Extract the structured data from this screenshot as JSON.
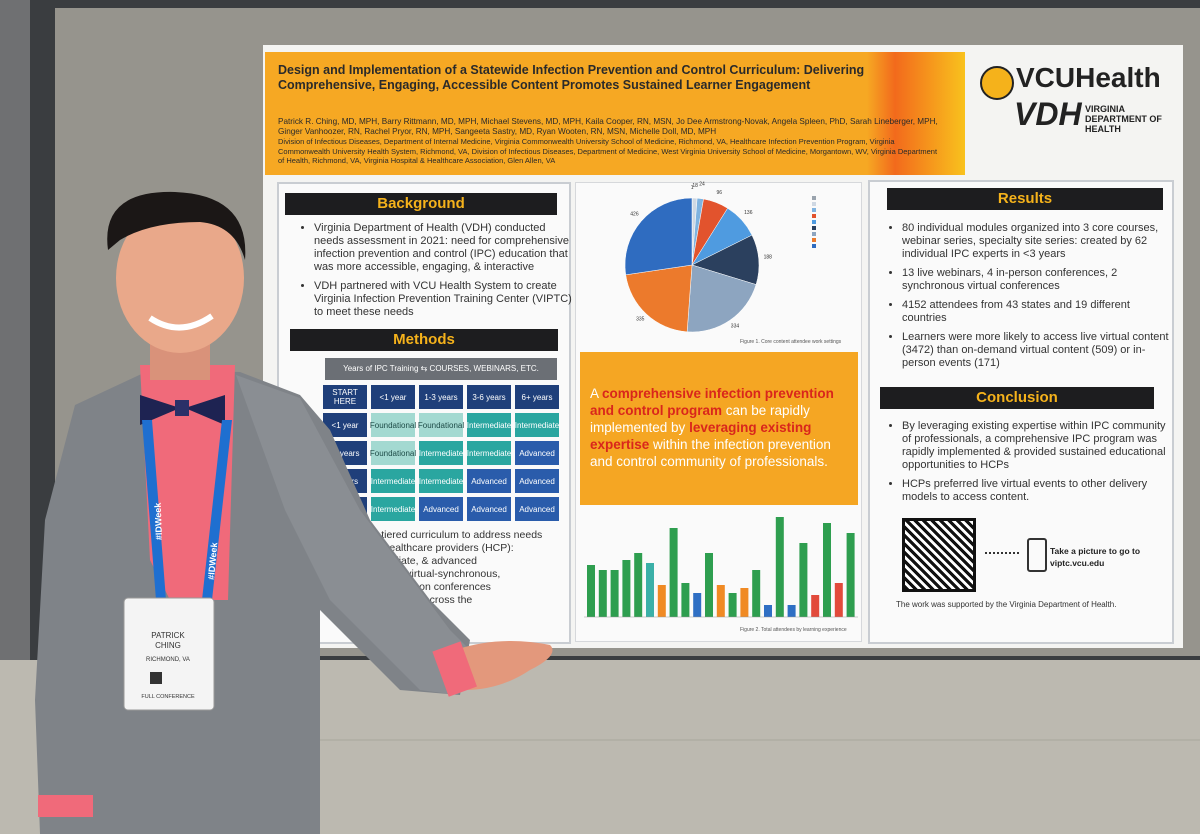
{
  "poster": {
    "title": "Design and Implementation of a Statewide Infection Prevention and Control Curriculum: Delivering Comprehensive, Engaging, Accessible Content Promotes Sustained Learner Engagement",
    "authors": "Patrick R. Ching, MD, MPH, Barry Rittmann, MD, MPH, Michael Stevens, MD, MPH, Kaila Cooper, RN, MSN, Jo Dee Armstrong-Novak, Angela Spleen, PhD, Sarah Lineberger, MPH, Ginger Vanhoozer, RN, Rachel Pryor, RN, MPH, Sangeeta Sastry, MD, Ryan Wooten, RN, MSN, Michelle Doll, MD, MPH",
    "affiliations": "Division of Infectious Diseases, Department of Internal Medicine, Virginia Commonwealth University School of Medicine, Richmond, VA, Healthcare Infection Prevention Program, Virginia Commonwealth University Health System, Richmond, VA, Division of Infectious Diseases, Department of Medicine, West Virginia University School of Medicine, Morgantown, WV, Virginia Department of Health, Richmond, VA, Virginia Hospital & Healthcare Association, Glen Allen, VA",
    "logos": {
      "vcu": "VCUHealth",
      "vdh": "VDH",
      "vdh_name": "VIRGINIA DEPARTMENT OF HEALTH"
    },
    "background": {
      "heading": "Background",
      "bullets": [
        "Virginia Department of Health (VDH) conducted needs assessment in 2021: need for comprehensive infection prevention and control (IPC) education that was more accessible, engaging, & interactive",
        "VDH partnered with VCU Health System to create Virginia Infection Prevention Training Center (VIPTC) to meet these needs"
      ]
    },
    "methods": {
      "heading": "Methods",
      "table_title": "Years of IPC Training ⇆ COURSES, WEBINARS, ETC.",
      "header": [
        "START HERE",
        "<1 year",
        "1-3 years",
        "3-6 years",
        "6+ years"
      ],
      "rows": [
        [
          "<1 year",
          "Foundational",
          "Foundational",
          "Intermediate",
          "Intermediate"
        ],
        [
          "-2 years",
          "Foundational",
          "Intermediate",
          "Intermediate",
          "Advanced"
        ],
        [
          "3 years",
          "Intermediate",
          "Intermediate",
          "Advanced",
          "Advanced"
        ],
        [
          "years",
          "Intermediate",
          "Advanced",
          "Advanced",
          "Advanced"
        ]
      ],
      "visible_lines": [
        "eloped a tiered curriculum to address needs",
        "variety of healthcare providers (HCP):",
        "nal, intermediate, & advanced",
        "ational model: virtual-synchronous,",
        "nous, and in-person conferences",
        "fection prevention across the"
      ]
    },
    "figure1": {
      "type": "pie",
      "caption": "Figure 1. Core content attendee work settings",
      "values": [
        1,
        18,
        24,
        96,
        136,
        188,
        334,
        335,
        426
      ],
      "colors": [
        "#9aa3ad",
        "#cfd8e3",
        "#7fb3e0",
        "#e2532d",
        "#4f9be0",
        "#2b405e",
        "#8da5c0",
        "#ec7a2c",
        "#2f6cc0"
      ]
    },
    "callout": [
      "A ",
      "comprehensive infection prevention and control program",
      " can be rapidly implemented by ",
      "leveraging existing expertise",
      " within the infection prevention and control community of professionals."
    ],
    "figure2": {
      "type": "bar",
      "caption": "Figure 2. Total attendees by learning experience",
      "values": [
        260,
        235,
        235,
        285,
        320,
        270,
        160,
        445,
        170,
        120,
        320,
        160,
        120,
        145,
        235,
        60,
        500,
        60,
        370,
        110,
        470,
        170,
        420
      ],
      "colors": [
        "#2e9e4f",
        "#2e9e4f",
        "#2e9e4f",
        "#2e9e4f",
        "#2e9e4f",
        "#3bb0a8",
        "#f08a24",
        "#2e9e4f",
        "#2e9e4f",
        "#2f6fc4",
        "#2e9e4f",
        "#f08a24",
        "#2e9e4f",
        "#f08a24",
        "#2e9e4f",
        "#2f6fc4",
        "#2e9e4f",
        "#2f6fc4",
        "#2e9e4f",
        "#e24a3b",
        "#2e9e4f",
        "#e24a3b",
        "#2e9e4f"
      ]
    },
    "results": {
      "heading": "Results",
      "bullets": [
        "80 individual modules organized into 3 core courses, webinar series, specialty site series: created by 62 individual IPC experts in <3 years",
        "13 live webinars, 4 in-person conferences, 2 synchronous virtual conferences",
        "4152 attendees from 43 states and 19 different countries",
        "Learners were more likely to access live virtual content (3472) than on-demand virtual content (509) or in-person events (171)"
      ]
    },
    "conclusion": {
      "heading": "Conclusion",
      "bullets": [
        "By leveraging existing expertise within IPC community of professionals, a comprehensive IPC program was rapidly implemented & provided sustained educational opportunities to HCPs",
        "HCPs preferred live virtual events to other delivery models to access content."
      ]
    },
    "qr_text": [
      "Take a picture to go to",
      "viptc.vcu.edu"
    ],
    "funding": "The work was supported by the Virginia Department of Health."
  },
  "badge": {
    "name": [
      "PATRICK",
      "CHING"
    ],
    "location": "RICHMOND, VA",
    "type": "FULL CONFERENCE"
  },
  "lanyard": "#IDWeek"
}
